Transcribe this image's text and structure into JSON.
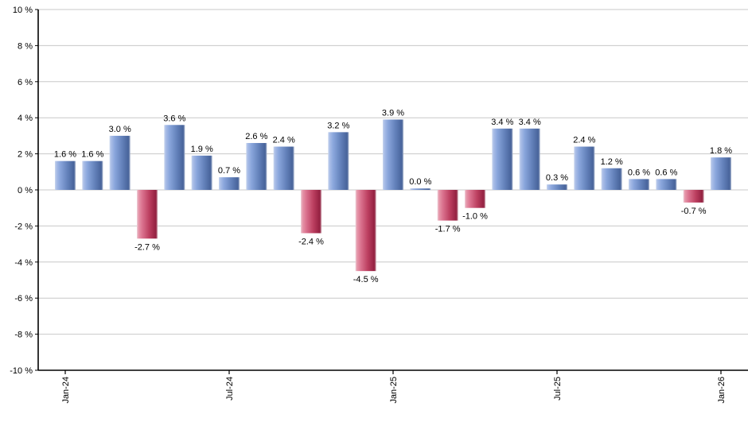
{
  "chart_data": {
    "type": "bar",
    "title": "",
    "xlabel": "",
    "ylabel": "",
    "unit": "%",
    "ylim": [
      -10,
      10
    ],
    "grid": true,
    "legend": "none",
    "bars": [
      {
        "month_index": 0,
        "value": 1.6,
        "label": "1.6 %"
      },
      {
        "month_index": 1,
        "value": 1.6,
        "label": "1.6 %"
      },
      {
        "month_index": 2,
        "value": 3.0,
        "label": "3.0 %"
      },
      {
        "month_index": 3,
        "value": -2.7,
        "label": "-2.7 %"
      },
      {
        "month_index": 4,
        "value": 3.6,
        "label": "3.6 %"
      },
      {
        "month_index": 5,
        "value": 1.9,
        "label": "1.9 %"
      },
      {
        "month_index": 6,
        "value": 0.7,
        "label": "0.7 %"
      },
      {
        "month_index": 7,
        "value": 2.6,
        "label": "2.6 %"
      },
      {
        "month_index": 8,
        "value": 2.4,
        "label": "2.4 %"
      },
      {
        "month_index": 9,
        "value": -2.4,
        "label": "-2.4 %"
      },
      {
        "month_index": 10,
        "value": 3.2,
        "label": "3.2 %"
      },
      {
        "month_index": 11,
        "value": -4.5,
        "label": "-4.5 %"
      },
      {
        "month_index": 12,
        "value": 3.9,
        "label": "3.9 %"
      },
      {
        "month_index": 13,
        "value": 0.0,
        "label": "0.0 %"
      },
      {
        "month_index": 14,
        "value": -1.7,
        "label": "-1.7 %"
      },
      {
        "month_index": 15,
        "value": -1.0,
        "label": "-1.0 %"
      },
      {
        "month_index": 16,
        "value": 3.4,
        "label": "3.4 %"
      },
      {
        "month_index": 17,
        "value": 3.4,
        "label": "3.4 %"
      },
      {
        "month_index": 18,
        "value": 0.3,
        "label": "0.3 %"
      },
      {
        "month_index": 19,
        "value": 2.4,
        "label": "2.4 %"
      },
      {
        "month_index": 20,
        "value": 1.2,
        "label": "1.2 %"
      },
      {
        "month_index": 21,
        "value": 0.6,
        "label": "0.6 %"
      },
      {
        "month_index": 22,
        "value": 0.6,
        "label": "0.6 %"
      },
      {
        "month_index": 23,
        "value": -0.7,
        "label": "-0.7 %"
      },
      {
        "month_index": 24,
        "value": 1.8,
        "label": "1.8 %"
      }
    ],
    "x_ticks": [
      {
        "month_index": 0,
        "label": "Jan-24"
      },
      {
        "month_index": 6,
        "label": "Jul-24"
      },
      {
        "month_index": 12,
        "label": "Jan-25"
      },
      {
        "month_index": 18,
        "label": "Jul-25"
      },
      {
        "month_index": 24,
        "label": "Jan-26"
      }
    ],
    "y_ticks": [
      {
        "value": 10,
        "label": "10 %"
      },
      {
        "value": 8,
        "label": "8 %"
      },
      {
        "value": 6,
        "label": "6 %"
      },
      {
        "value": 4,
        "label": "4 %"
      },
      {
        "value": 2,
        "label": "2 %"
      },
      {
        "value": 0,
        "label": "0 %"
      },
      {
        "value": -2,
        "label": "-2 %"
      },
      {
        "value": -4,
        "label": "-4 %"
      },
      {
        "value": -6,
        "label": "-6 %"
      },
      {
        "value": -8,
        "label": "-8 %"
      },
      {
        "value": -10,
        "label": "-10 %"
      }
    ],
    "colors": {
      "positive_gradient": [
        "#c9d6ee",
        "#a9bde7",
        "#8aa6dc",
        "#6482bb",
        "#47639a",
        "#aab6cf"
      ],
      "negative_gradient": [
        "#eed0d9",
        "#e698ab",
        "#db7490",
        "#bc3f60",
        "#932040",
        "#cda3ae"
      ],
      "gridline": "#c8c8c8",
      "axis": "#000000",
      "label_text": "#000000",
      "tick_text": "#000000",
      "background": "#ffffff"
    }
  }
}
